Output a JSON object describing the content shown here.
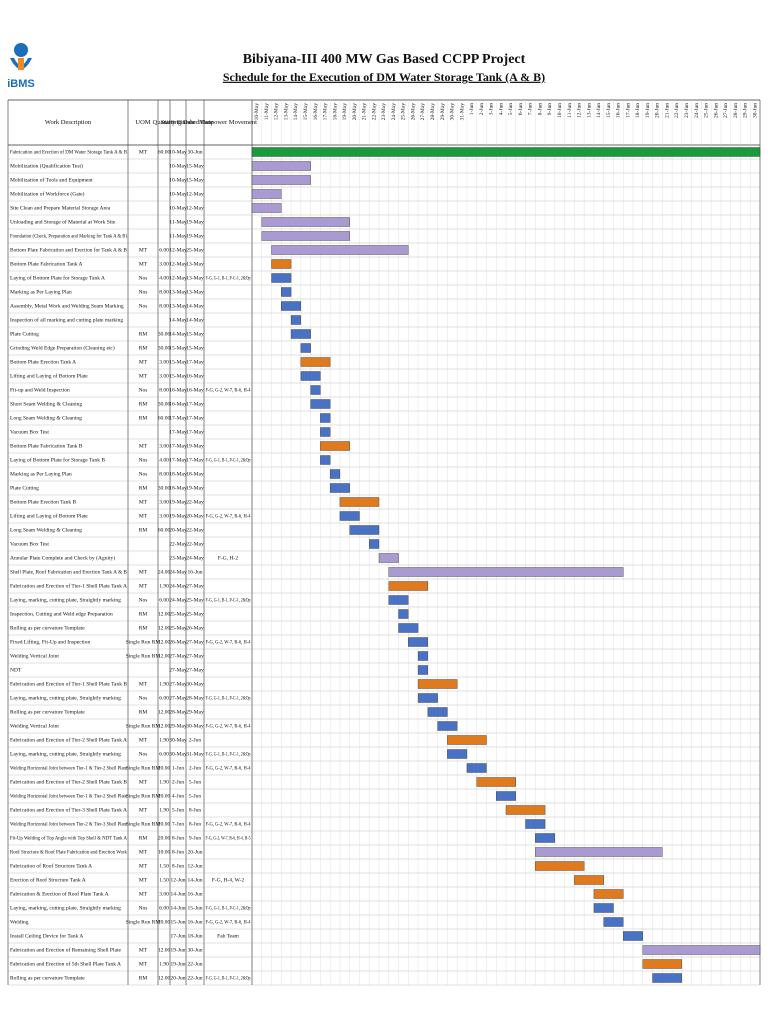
{
  "logo": {
    "name": "iBMS"
  },
  "header": {
    "title": "Bibiyana-III 400 MW Gas Based CCPP Project",
    "subtitle": "Schedule for the Execution of DM Water Storage Tank (A & B)"
  },
  "table": {
    "columns": [
      "Work Description",
      "UOM",
      "Quantity",
      "Starting Date",
      "Finished Date",
      "Manpower Movement"
    ],
    "timeline": [
      "10-May",
      "11-May",
      "12-May",
      "13-May",
      "14-May",
      "15-May",
      "16-May",
      "17-May",
      "18-May",
      "19-May",
      "20-May",
      "21-May",
      "22-May",
      "23-May",
      "24-May",
      "25-May",
      "26-May",
      "27-May",
      "28-May",
      "29-May",
      "30-May",
      "31-May",
      "1-Jun",
      "2-Jun",
      "3-Jun",
      "4-Jun",
      "5-Jun",
      "6-Jun",
      "7-Jun",
      "8-Jun",
      "9-Jun",
      "10-Jun",
      "11-Jun",
      "12-Jun",
      "13-Jun",
      "14-Jun",
      "15-Jun",
      "16-Jun",
      "17-Jun",
      "18-Jun",
      "19-Jun",
      "20-Jun",
      "21-Jun",
      "22-Jun",
      "23-Jun",
      "24-Jun",
      "25-Jun",
      "26-Jun",
      "27-Jun",
      "28-Jun",
      "29-Jun",
      "30-Jun"
    ],
    "rows": [
      [
        "Fabrication and Erection of DM Water Storage Tank A & B",
        "MT",
        "60.00",
        "10-May",
        "30-Jun",
        "",
        "#1a9a3a"
      ],
      [
        "Mobilization (Qualification Test)",
        "",
        "",
        "10-May",
        "15-May",
        "",
        "#a99bd1"
      ],
      [
        "Mobilization of Tools and Equipment",
        "",
        "",
        "10-May",
        "15-May",
        "",
        "#a99bd1"
      ],
      [
        "Mobilization of Workforce (Gate)",
        "",
        "",
        "10-May",
        "12-May",
        "",
        "#a99bd1"
      ],
      [
        "Site Clean and Prepare Material Storage Area",
        "",
        "",
        "10-May",
        "12-May",
        "",
        "#a99bd1"
      ],
      [
        "Unloading and Storage of Material at Work Site",
        "",
        "",
        "11-May",
        "19-May",
        "",
        "#a99bd1"
      ],
      [
        "Foundation (Check, Preparation and Marking for Tank A & B)",
        "",
        "",
        "11-May",
        "19-May",
        "",
        "#a99bd1"
      ],
      [
        "Bottom Plate Fabrication and Erection for Tank A & B",
        "MT",
        "6.00",
        "12-May",
        "25-May",
        "",
        "#a99bd1"
      ],
      [
        "Bottom Plate Fabrication Tank A",
        "MT",
        "3.00",
        "12-May",
        "13-May",
        "",
        "#e07a1f"
      ],
      [
        "Laying of Bottom Plate for Storage Tank A",
        "Nos",
        "4.00",
        "12-May",
        "13-May",
        "F-G, G-1, B-1, P-C-1, 2&Op",
        "#4a72c4"
      ],
      [
        "Marking as Per Laying Plan",
        "Nos",
        "8.00",
        "13-May",
        "13-May",
        "",
        "#4a72c4"
      ],
      [
        "Assembly, Metal Work and Welding Seam Marking",
        "Nos",
        "8.00",
        "13-May",
        "14-May",
        "",
        "#4a72c4"
      ],
      [
        "Inspection of all marking and cutting plate marking",
        "",
        "",
        "14-May",
        "14-May",
        "",
        "#4a72c4"
      ],
      [
        "Plate Cutting",
        "RM",
        "30.00",
        "14-May",
        "15-May",
        "",
        "#4a72c4"
      ],
      [
        "Grinding Weld Edge Preparation (Cleaning etc)",
        "RM",
        "30.00",
        "15-May",
        "15-May",
        "",
        "#4a72c4"
      ],
      [
        "Bottom Plate Erection Tank A",
        "MT",
        "3.00",
        "15-May",
        "17-May",
        "",
        "#e07a1f"
      ],
      [
        "Lifting and Laying of Bottom Plate",
        "MT",
        "3.00",
        "15-May",
        "16-May",
        "",
        "#4a72c4"
      ],
      [
        "Fit-up and Weld Inspection",
        "Nos",
        "8.00",
        "16-May",
        "16-May",
        "F-G, G-2, W-7, R-6, H-4",
        "#4a72c4"
      ],
      [
        "Short Seam Welding & Cleaning",
        "RM",
        "30.00",
        "16-May",
        "17-May",
        "",
        "#4a72c4"
      ],
      [
        "Long Seam Welding & Cleaning",
        "RM",
        "60.00",
        "17-May",
        "17-May",
        "",
        "#4a72c4"
      ],
      [
        "Vacuum Box Test",
        "",
        "",
        "17-May",
        "17-May",
        "",
        "#4a72c4"
      ],
      [
        "Bottom Plate Fabrication Tank B",
        "MT",
        "3.00",
        "17-May",
        "19-May",
        "",
        "#e07a1f"
      ],
      [
        "Laying of Bottom Plate for Storage Tank B",
        "Nos",
        "4.00",
        "17-May",
        "17-May",
        "F-G, G-1, B-1, P-C-1, 2&Op",
        "#4a72c4"
      ],
      [
        "Marking as Per Laying Plan",
        "Nos",
        "8.00",
        "18-May",
        "18-May",
        "",
        "#4a72c4"
      ],
      [
        "Plate Cutting",
        "RM",
        "30.00",
        "18-May",
        "19-May",
        "",
        "#4a72c4"
      ],
      [
        "Bottom Plate Erection Tank B",
        "MT",
        "3.00",
        "19-May",
        "22-May",
        "",
        "#e07a1f"
      ],
      [
        "Lifting and Laying of Bottom Plate",
        "MT",
        "3.00",
        "19-May",
        "20-May",
        "F-G, G-2, W-7, R-6, H-4",
        "#4a72c4"
      ],
      [
        "Long Seam Welding & Cleaning",
        "RM",
        "60.00",
        "20-May",
        "22-May",
        "",
        "#4a72c4"
      ],
      [
        "Vacuum Box Test",
        "",
        "",
        "22-May",
        "22-May",
        "",
        "#4a72c4"
      ],
      [
        "Annular Plate Complete and Check by (Agnity)",
        "",
        "",
        "23-May",
        "24-May",
        "F-G, H-2",
        "#a99bd1"
      ],
      [
        "Shell Plate, Roof Fabrication and Erection Tank A & B",
        "MT",
        "24.00",
        "24-May",
        "16-Jun",
        "",
        "#a99bd1"
      ],
      [
        "Fabrication and Erection of Tier-1 Shell Plate Tank A",
        "MT",
        "1.90",
        "24-May",
        "27-May",
        "",
        "#e07a1f"
      ],
      [
        "Laying, marking, cutting plate, Straightly marking",
        "Nos",
        "6.00",
        "24-May",
        "25-May",
        "F-G, G-1, B-1, P-C-1, 2&Op",
        "#4a72c4"
      ],
      [
        "Inspection, Cutting and Weld edge Preparation",
        "RM",
        "12.00",
        "25-May",
        "25-May",
        "",
        "#4a72c4"
      ],
      [
        "Rolling as per curvature Template",
        "RM",
        "12.00",
        "25-May",
        "26-May",
        "",
        "#4a72c4"
      ],
      [
        "Fixed Lifting, Fit-Up and Inspection",
        "Single Run RM",
        "12.00",
        "26-May",
        "27-May",
        "F-G, G-2, W-7, R-6, H-4",
        "#4a72c4"
      ],
      [
        "Welding Vertical Joint",
        "Single Run RM",
        "12.00",
        "27-May",
        "27-May",
        "",
        "#4a72c4"
      ],
      [
        "NDT",
        "",
        "",
        "27-May",
        "27-May",
        "",
        "#4a72c4"
      ],
      [
        "Fabrication and Erection of Tier-1 Shell Plate Tank B",
        "MT",
        "1.90",
        "27-May",
        "30-May",
        "",
        "#e07a1f"
      ],
      [
        "Laying, marking, cutting plate, Straightly marking",
        "Nos",
        "6.00",
        "27-May",
        "28-May",
        "F-G, G-1, B-1, P-C-1, 2&Op",
        "#4a72c4"
      ],
      [
        "Rolling as per curvature Template",
        "RM",
        "12.00",
        "28-May",
        "29-May",
        "",
        "#4a72c4"
      ],
      [
        "Welding Vertical Joint",
        "Single Run RM",
        "12.00",
        "29-May",
        "30-May",
        "F-G, G-2, W-7, R-6, H-4",
        "#4a72c4"
      ],
      [
        "Fabrication and Erection of Tier-2 Shell Plate Tank A",
        "MT",
        "1.90",
        "30-May",
        "2-Jun",
        "",
        "#e07a1f"
      ],
      [
        "Laying, marking, cutting plate, Straightly marking",
        "Nos",
        "6.00",
        "30-May",
        "31-May",
        "F-G, G-1, B-1, P-C-1, 2&Op",
        "#4a72c4"
      ],
      [
        "Welding Horizontal Joint between Tier-1 & Tier-2 Shell Plate",
        "Single Run RM",
        "20.00",
        "1-Jun",
        "2-Jun",
        "F-G, G-2, W-7, R-6, H-4",
        "#4a72c4"
      ],
      [
        "Fabrication and Erection of Tier-2 Shell Plate Tank B",
        "MT",
        "1.90",
        "2-Jun",
        "5-Jun",
        "",
        "#e07a1f"
      ],
      [
        "Welding Horizontal Joint between Tier-1 & Tier-2 Shell Plate",
        "Single Run RM",
        "20.00",
        "4-Jun",
        "5-Jun",
        "",
        "#4a72c4"
      ],
      [
        "Fabrication and Erection of Tier-3 Shell Plate Tank A",
        "MT",
        "1.90",
        "5-Jun",
        "8-Jun",
        "",
        "#e07a1f"
      ],
      [
        "Welding Horizontal Joint between Tier-2 & Tier-3 Shell Plate",
        "Single Run RM",
        "20.00",
        "7-Jun",
        "8-Jun",
        "F-G, G-2, W-7, R-6, H-4",
        "#4a72c4"
      ],
      [
        "Fit-Up Welding of Top Angle with Top Shell & NDT Tank A",
        "RM",
        "20.00",
        "8-Jun",
        "9-Jun",
        "F-G, G-2, W-7, R-6, H-4, H-5",
        "#4a72c4"
      ],
      [
        "Roof Structure & Roof Plate Fabrication and Erection Work",
        "MT",
        "10.00",
        "8-Jun",
        "20-Jun",
        "",
        "#a99bd1"
      ],
      [
        "Fabrication of Roof Structure Tank A",
        "MT",
        "1.50",
        "8-Jun",
        "12-Jun",
        "",
        "#e07a1f"
      ],
      [
        "Erection of Roof Structure Tank A",
        "MT",
        "1.50",
        "12-Jun",
        "14-Jun",
        "F-G, H-4, W-2",
        "#e07a1f"
      ],
      [
        "Fabrication & Erection of Roof Plate Tank A",
        "MT",
        "3.00",
        "14-Jun",
        "16-Jun",
        "",
        "#e07a1f"
      ],
      [
        "Laying, marking, cutting plate, Straightly marking",
        "Nos",
        "6.00",
        "14-Jun",
        "15-Jun",
        "F-G, G-1, B-1, P-C-1, 2&Op",
        "#4a72c4"
      ],
      [
        "Welding",
        "Single Run RM",
        "20.00",
        "15-Jun",
        "16-Jun",
        "F-G, G-2, W-7, R-6, H-4",
        "#4a72c4"
      ],
      [
        "Install Ceiling Device for Tank A",
        "",
        "",
        "17-Jun",
        "18-Jun",
        "Fab Team",
        "#4a72c4"
      ],
      [
        "Fabrication and Erection of Remaining Shell Plate",
        "MT",
        "12.00",
        "19-Jun",
        "30-Jun",
        "",
        "#a99bd1"
      ],
      [
        "Fabrication and Erection of 5th Shell Plate Tank A",
        "MT",
        "1.90",
        "19-Jun",
        "22-Jun",
        "",
        "#e07a1f"
      ],
      [
        "Rolling as per curvature Template",
        "RM",
        "12.00",
        "20-Jun",
        "22-Jun",
        "F-G, G-1, B-1, P-C-1, 2&Op",
        "#4a72c4"
      ]
    ]
  }
}
